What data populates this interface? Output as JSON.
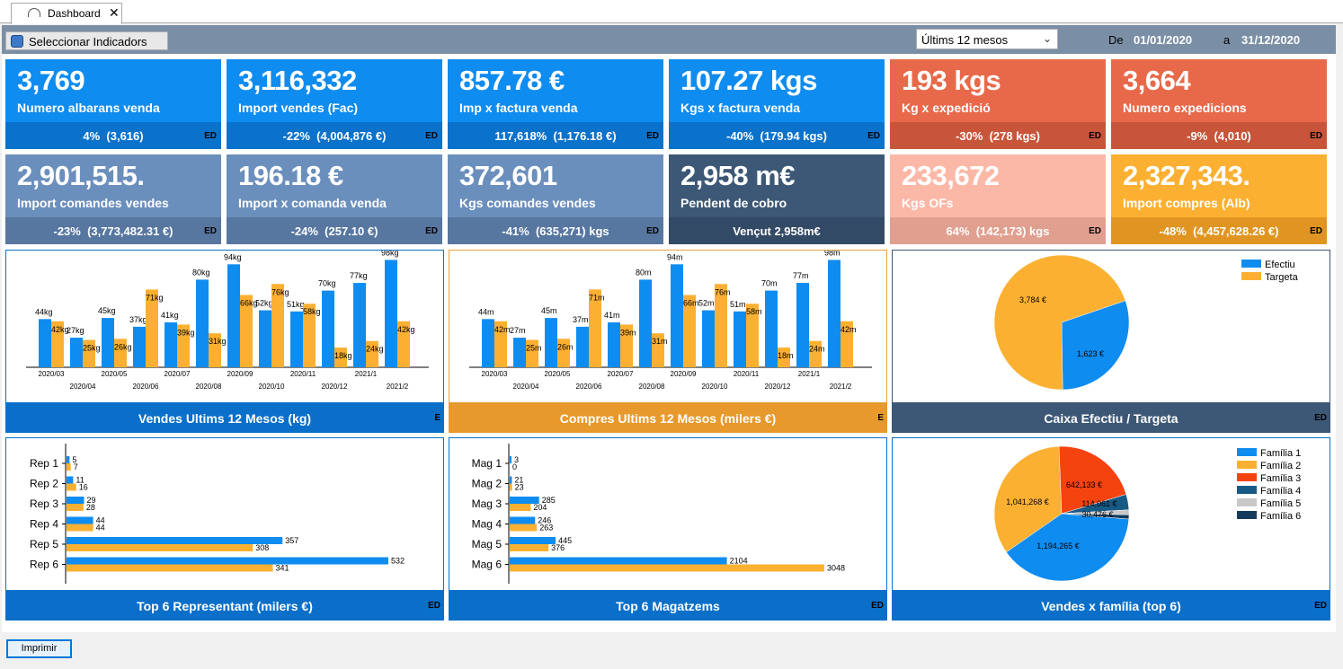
{
  "tab": {
    "label": "Dashboard",
    "close": "✕"
  },
  "toolbar": {
    "select_label": "Seleccionar Indicadors",
    "period": "Últims 12 mesos",
    "from_label": "De",
    "from_date": "01/01/2020",
    "to_label": "a",
    "to_date": "31/12/2020"
  },
  "colors": {
    "blue": "#0f8cf0",
    "orange": "#fbb032",
    "salmon": "#e8694a",
    "steel": "#6b8fbd",
    "navy": "#3d5876",
    "pink": "#fcb8a6"
  },
  "kpis": [
    {
      "value": "3,769",
      "label": "Numero albarans venda",
      "footer": "4%  (3,616)",
      "tag": "ED",
      "bg": "#0f8cf0",
      "fbg": "#0b72cc"
    },
    {
      "value": "3,116,332",
      "label": "Import vendes (Fac)",
      "footer": "-22%  (4,004,876 €)",
      "tag": "ED",
      "bg": "#0f8cf0",
      "fbg": "#0b72cc"
    },
    {
      "value": "857.78 €",
      "label": "Imp x factura venda",
      "footer": "117,618%  (1,176.18 €)",
      "tag": "ED",
      "bg": "#0f8cf0",
      "fbg": "#0b72cc"
    },
    {
      "value": "107.27 kgs",
      "label": "Kgs x factura venda",
      "footer": "-40%  (179.94 kgs)",
      "tag": "ED",
      "bg": "#0f8cf0",
      "fbg": "#0b72cc"
    },
    {
      "value": "193 kgs",
      "label": "Kg x expedició",
      "footer": "-30%  (278 kgs)",
      "tag": "ED",
      "bg": "#e8694a",
      "fbg": "#c8553a"
    },
    {
      "value": "3,664",
      "label": "Numero expedicions",
      "footer": "-9%  (4,010)",
      "tag": "ED",
      "bg": "#e8694a",
      "fbg": "#c8553a"
    },
    {
      "value": "2,901,515.",
      "label": "Import comandes vendes",
      "footer": "-23%  (3,773,482.31 €)",
      "tag": "ED",
      "bg": "#6b8fbd",
      "fbg": "#5776a0"
    },
    {
      "value": "196.18 €",
      "label": "Import x comanda venda",
      "footer": "-24%  (257.10 €)",
      "tag": "ED",
      "bg": "#6b8fbd",
      "fbg": "#5776a0"
    },
    {
      "value": "372,601",
      "label": "Kgs comandes vendes",
      "footer": "-41%  (635,271) kgs",
      "tag": "ED",
      "bg": "#6b8fbd",
      "fbg": "#5776a0"
    },
    {
      "value": "2,958 m€",
      "label": "Pendent de cobro",
      "footer": "Vençut 2,958m€",
      "tag": "",
      "bg": "#3d5876",
      "fbg": "#334a66"
    },
    {
      "value": "233,672",
      "label": "Kgs OFs",
      "footer": "64%  (142,173) kgs",
      "tag": "ED",
      "bg": "#fcb8a6",
      "fbg": "#e19f90"
    },
    {
      "value": "2,327,343.",
      "label": "Import compres (Alb)",
      "footer": "-48%  (4,457,628.26 €)",
      "tag": "ED",
      "bg": "#fbb032",
      "fbg": "#e09522"
    }
  ],
  "panels": [
    {
      "title": "Vendes Ultims 12 Mesos (kg)",
      "tag": "E"
    },
    {
      "title": "Compres Ultims 12 Mesos (milers €)",
      "tag": "E"
    },
    {
      "title": "Caixa Efectiu / Targeta",
      "tag": "ED"
    },
    {
      "title": "Top 6 Representant (milers €)",
      "tag": "ED"
    },
    {
      "title": "Top 6 Magatzems",
      "tag": "ED"
    },
    {
      "title": "Vendes x família (top 6)",
      "tag": "ED"
    }
  ],
  "chart_data": [
    {
      "type": "bar",
      "categories": [
        "2020/03",
        "2020/04",
        "2020/05",
        "2020/06",
        "2020/07",
        "2020/08",
        "2020/09",
        "2020/10",
        "2020/11",
        "2020/12",
        "2021/1",
        "2021/2"
      ],
      "series": [
        {
          "values": [
            44,
            27,
            45,
            37,
            41,
            80,
            94,
            52,
            51,
            70,
            77,
            98
          ],
          "labels": [
            "44kg",
            "27kg",
            "45kg",
            "37kg",
            "41kg",
            "80kg",
            "94kg",
            "52kg",
            "51kg",
            "70kg",
            "77kg",
            "98kg"
          ],
          "color": "#0f8cf0"
        },
        {
          "values": [
            42,
            25,
            26,
            71,
            39,
            31,
            66,
            76,
            58,
            18,
            24,
            42
          ],
          "labels": [
            "42kg",
            "25kg",
            "26kg",
            "71kg",
            "39kg",
            "31kg",
            "66kg",
            "76kg",
            "58kg",
            "18kg",
            "24kg",
            "42kg"
          ],
          "color": "#fbb032"
        }
      ]
    },
    {
      "type": "bar",
      "categories": [
        "2020/03",
        "2020/04",
        "2020/05",
        "2020/06",
        "2020/07",
        "2020/08",
        "2020/09",
        "2020/10",
        "2020/11",
        "2020/12",
        "2021/1",
        "2021/2"
      ],
      "series": [
        {
          "values": [
            44,
            27,
            45,
            37,
            41,
            80,
            94,
            52,
            51,
            70,
            77,
            98
          ],
          "labels": [
            "44m",
            "27m",
            "45m",
            "37m",
            "41m",
            "80m",
            "94m",
            "52m",
            "51m",
            "70m",
            "77m",
            "98m"
          ],
          "color": "#0f8cf0"
        },
        {
          "values": [
            42,
            25,
            26,
            71,
            39,
            31,
            66,
            76,
            58,
            18,
            24,
            42
          ],
          "labels": [
            "42m",
            "25m",
            "26m",
            "71m",
            "39m",
            "31m",
            "66m",
            "76m",
            "58m",
            "18m",
            "24m",
            "42m"
          ],
          "color": "#fbb032"
        }
      ]
    },
    {
      "type": "pie",
      "slices": [
        {
          "name": "Efectiu",
          "value": 1623,
          "label": "1,623 €",
          "color": "#0f8cf0"
        },
        {
          "name": "Targeta",
          "value": 3784,
          "label": "3,784 €",
          "color": "#fbb032"
        }
      ]
    },
    {
      "type": "bar",
      "orientation": "horizontal",
      "categories": [
        "Rep 1",
        "Rep 2",
        "Rep 3",
        "Rep 4",
        "Rep 5",
        "Rep 6"
      ],
      "series": [
        {
          "values": [
            5,
            11,
            29,
            44,
            357,
            532
          ],
          "color": "#0f8cf0"
        },
        {
          "values": [
            7,
            16,
            28,
            44,
            308,
            341
          ],
          "color": "#fbb032"
        }
      ]
    },
    {
      "type": "bar",
      "orientation": "horizontal",
      "categories": [
        "Mag 1",
        "Mag 2",
        "Mag 3",
        "Mag 4",
        "Mag 5",
        "Mag 6"
      ],
      "series": [
        {
          "values": [
            3,
            21,
            285,
            246,
            445,
            2104
          ],
          "color": "#0f8cf0"
        },
        {
          "values": [
            0,
            23,
            204,
            263,
            376,
            3048
          ],
          "color": "#fbb032"
        }
      ]
    },
    {
      "type": "pie",
      "slices": [
        {
          "name": "Família 1",
          "value": 1194265,
          "label": "1,194,265 €",
          "color": "#0f8cf0"
        },
        {
          "name": "Família 2",
          "value": 1041268,
          "label": "1,041,268 €",
          "color": "#fbb032"
        },
        {
          "name": "Família 3",
          "value": 642133,
          "label": "642,133 €",
          "color": "#f5430f"
        },
        {
          "name": "Família 4",
          "value": 114061,
          "label": "114,061 €",
          "color": "#185a86"
        },
        {
          "name": "Família 5",
          "value": 36000,
          "label": "",
          "color": "#c8c8c8"
        },
        {
          "name": "Família 6",
          "value": 30476,
          "label": "30,476 €",
          "color": "#163a5c"
        }
      ]
    }
  ],
  "print_label": "Imprimir"
}
